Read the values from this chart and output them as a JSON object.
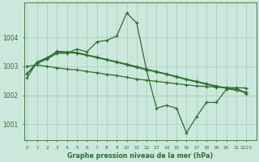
{
  "xlabel": "Graphe pression niveau de la mer (hPa)",
  "bg_color": "#cce8dd",
  "grid_color": "#aacfbe",
  "line_color": "#2d6e2d",
  "marker": "+",
  "line_width": 0.9,
  "marker_size": 3.5,
  "series": [
    {
      "x": [
        0,
        1,
        2,
        3,
        4,
        5,
        6,
        7,
        8,
        9,
        10,
        11,
        12,
        13,
        14,
        15,
        16,
        17,
        18,
        19,
        20,
        21,
        22
      ],
      "y": [
        1002.75,
        1003.1,
        1003.25,
        1003.45,
        1003.45,
        1003.6,
        1003.5,
        1003.85,
        1003.9,
        1004.05,
        1004.85,
        1004.5,
        1002.85,
        1001.55,
        1001.65,
        1001.55,
        1000.7,
        1001.25,
        1001.75,
        1001.75,
        1002.2,
        1002.25,
        1002.05
      ]
    },
    {
      "x": [
        0,
        1,
        2,
        3,
        4,
        5,
        6,
        7,
        8,
        9,
        10,
        11,
        12,
        13,
        14,
        15,
        16,
        17,
        18,
        19,
        20,
        21,
        22
      ],
      "y": [
        1003.0,
        1003.05,
        1003.0,
        1002.95,
        1002.9,
        1002.88,
        1002.82,
        1002.78,
        1002.72,
        1002.68,
        1002.62,
        1002.56,
        1002.52,
        1002.48,
        1002.44,
        1002.4,
        1002.36,
        1002.32,
        1002.3,
        1002.28,
        1002.27,
        1002.26,
        1002.25
      ]
    },
    {
      "x": [
        0,
        1,
        2,
        3,
        4,
        5,
        6,
        7,
        8,
        9,
        10,
        11,
        12,
        13,
        14,
        15,
        16,
        17,
        18,
        19,
        20,
        21,
        22
      ],
      "y": [
        1002.6,
        1003.15,
        1003.3,
        1003.5,
        1003.48,
        1003.45,
        1003.38,
        1003.3,
        1003.22,
        1003.14,
        1003.05,
        1002.96,
        1002.88,
        1002.8,
        1002.72,
        1002.63,
        1002.54,
        1002.46,
        1002.38,
        1002.3,
        1002.24,
        1002.17,
        1002.1
      ]
    },
    {
      "x": [
        0,
        1,
        2,
        3,
        4,
        5,
        6,
        7,
        8,
        9,
        10,
        11,
        12,
        13,
        14,
        15,
        16,
        17,
        18,
        19,
        20,
        21,
        22
      ],
      "y": [
        1002.75,
        1003.15,
        1003.28,
        1003.52,
        1003.5,
        1003.48,
        1003.4,
        1003.32,
        1003.24,
        1003.16,
        1003.08,
        1002.99,
        1002.9,
        1002.82,
        1002.74,
        1002.65,
        1002.56,
        1002.48,
        1002.4,
        1002.32,
        1002.25,
        1002.18,
        1002.1
      ]
    }
  ],
  "yticks": [
    1001,
    1002,
    1003,
    1004
  ],
  "xtick_labels": [
    "0",
    "1",
    "2",
    "3",
    "4",
    "5",
    "6",
    "7",
    "8",
    "9",
    "10",
    "11",
    "12",
    "13",
    "14",
    "15",
    "16",
    "17",
    "18",
    "19",
    "20",
    "21",
    "2223"
  ],
  "xtick_positions": [
    0,
    1,
    2,
    3,
    4,
    5,
    6,
    7,
    8,
    9,
    10,
    11,
    12,
    13,
    14,
    15,
    16,
    17,
    18,
    19,
    20,
    21,
    22
  ],
  "ylim": [
    1000.45,
    1005.2
  ],
  "xlim": [
    -0.3,
    23.0
  ]
}
